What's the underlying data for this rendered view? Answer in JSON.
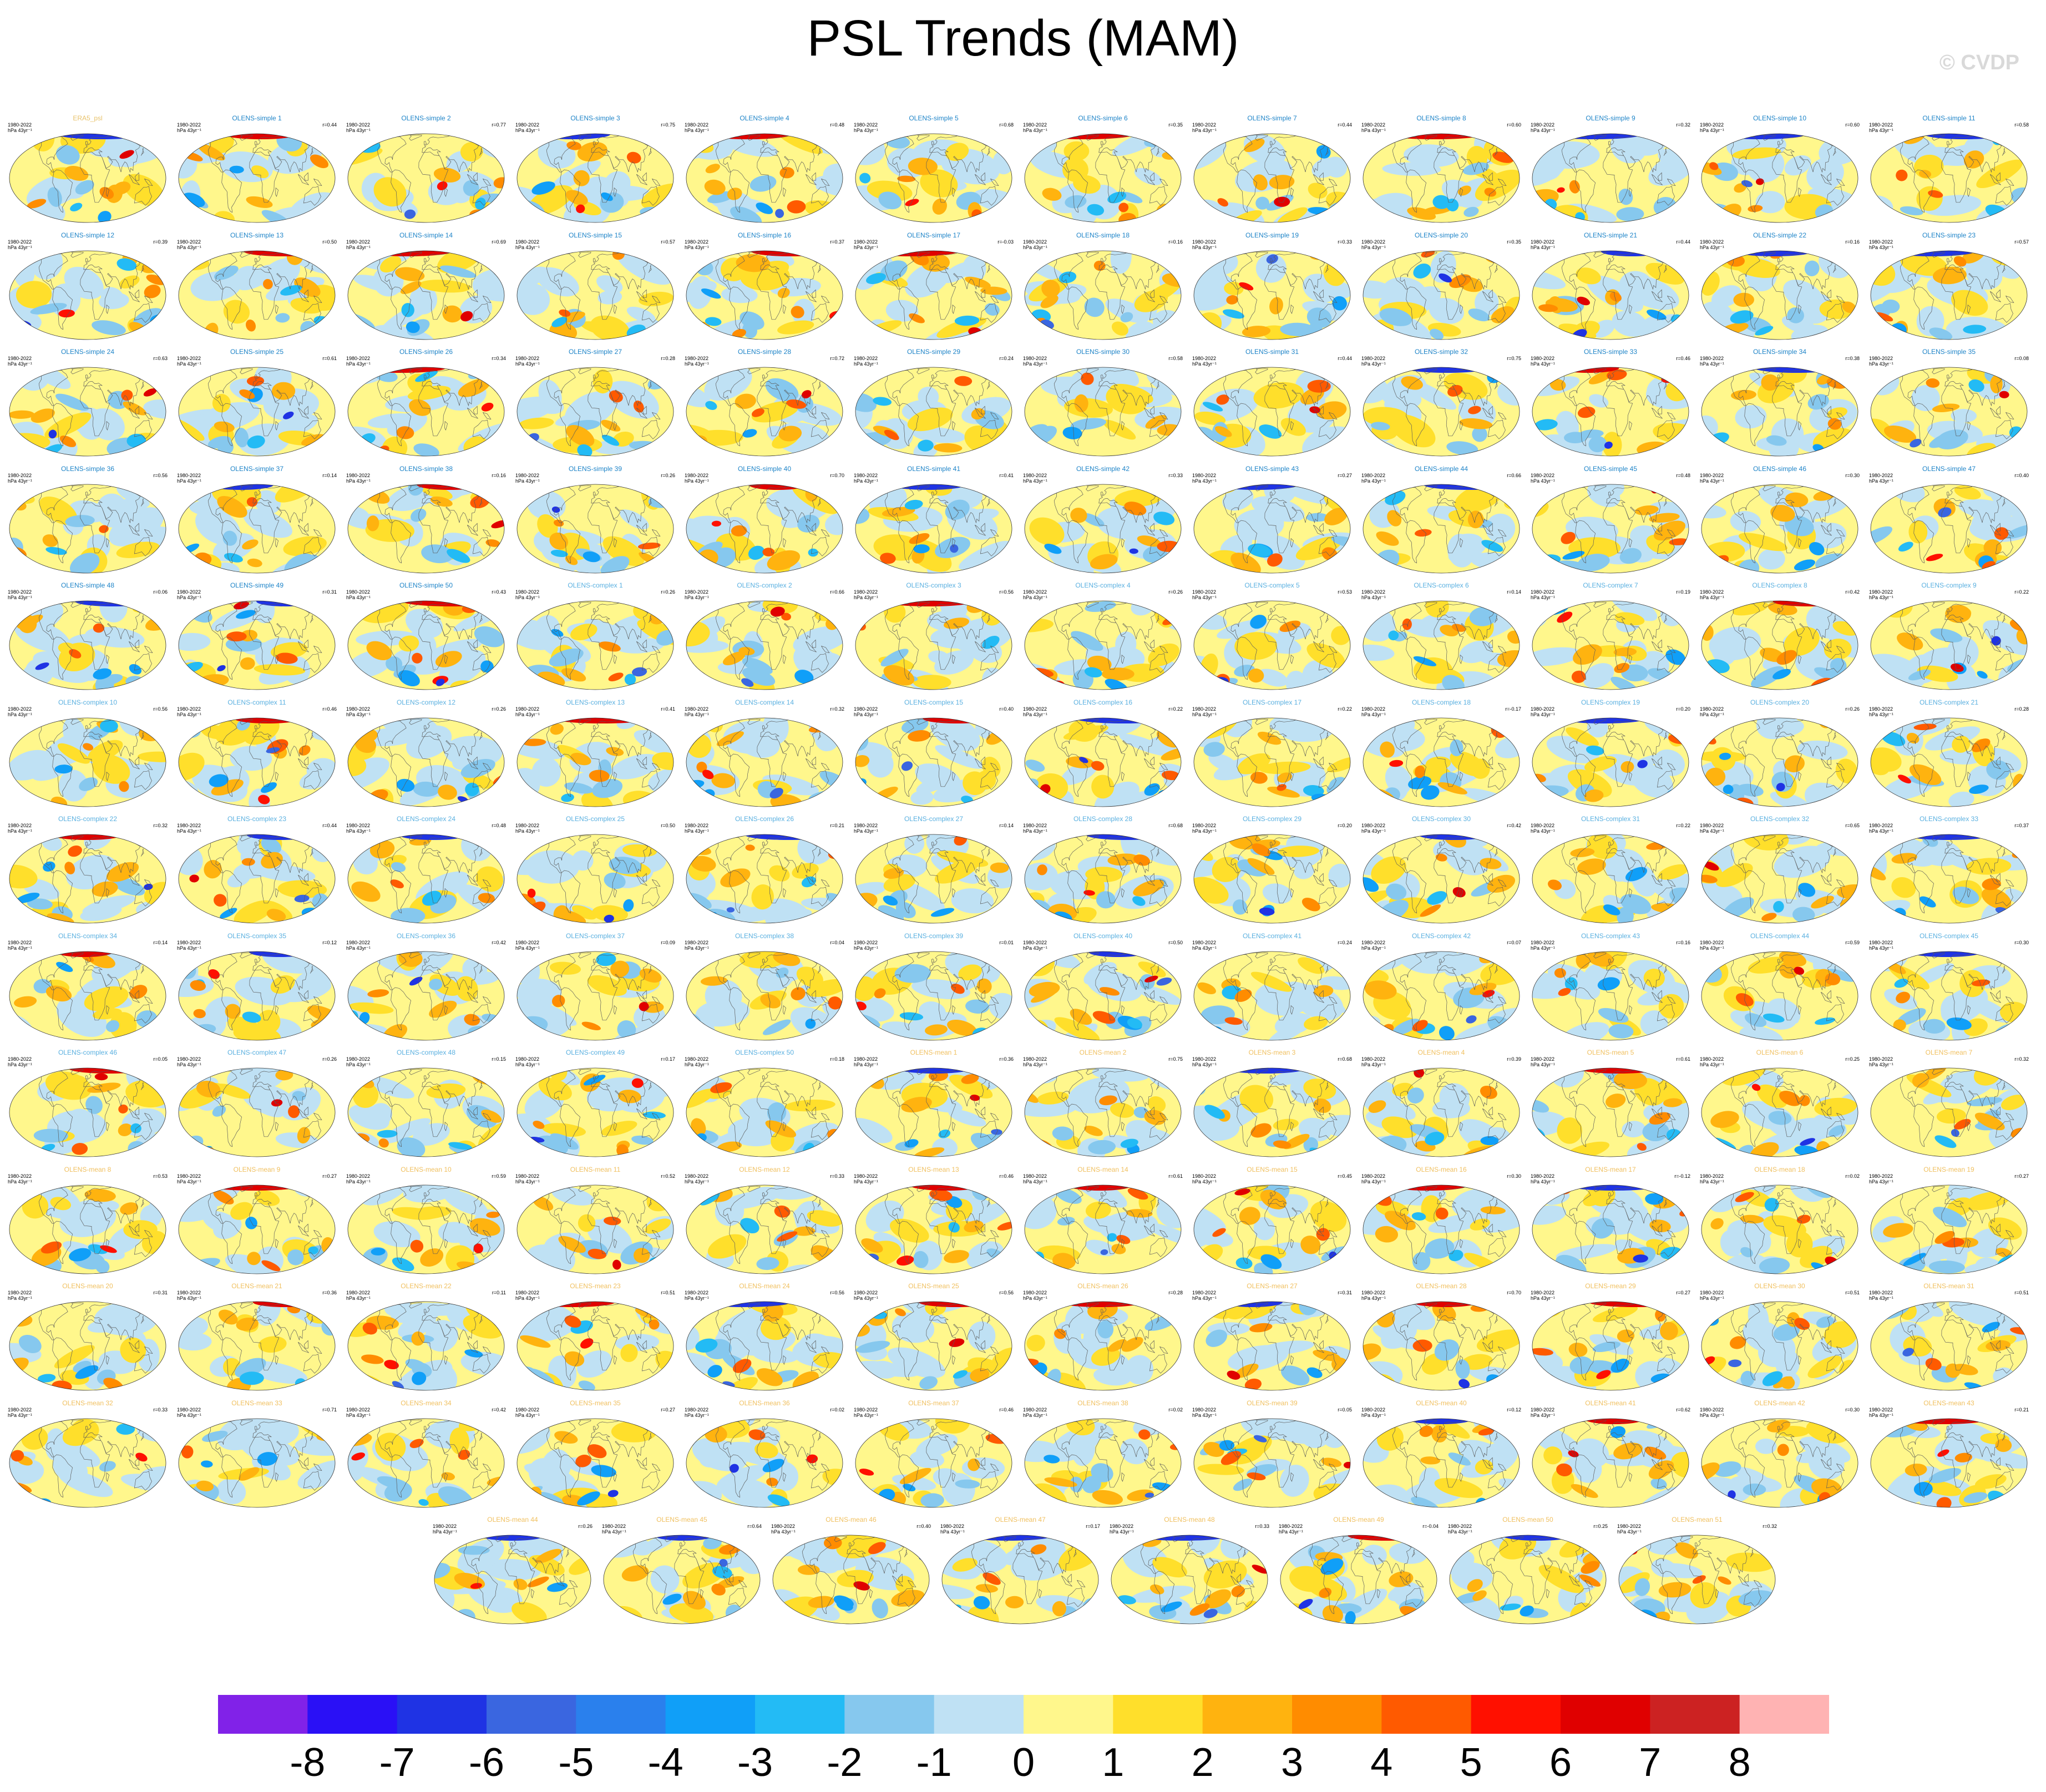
{
  "title": "PSL Trends (MAM)",
  "watermark": "© CVDP",
  "panel_period": "1980-2022",
  "panel_units": "hPa 43yr⁻¹",
  "chart_data": {
    "type": "heatmap",
    "title": "PSL Trends (MAM)",
    "projection": "robinson",
    "period": "1980-2022",
    "units": "hPa 43yr⁻¹",
    "colorbar": {
      "ticks": [
        "-8",
        "-7",
        "-6",
        "-5",
        "-4",
        "-3",
        "-2",
        "-1",
        "0",
        "1",
        "2",
        "3",
        "4",
        "5",
        "6",
        "7",
        "8"
      ],
      "colors": [
        "#8122e8",
        "#2a10f6",
        "#1f33e4",
        "#3a66e0",
        "#2a80ed",
        "#109ff8",
        "#23bbf5",
        "#86c8ee",
        "#bfe1f4",
        "#fff78c",
        "#ffdf2b",
        "#ffb30f",
        "#ff8c00",
        "#ff5a00",
        "#ff1000",
        "#e00000",
        "#cc2222",
        "#ffb3b3"
      ]
    },
    "panels": [
      {
        "title": "ERA5_psl",
        "r": "",
        "c": "#e8c26a"
      },
      {
        "title": "OLENS-simple 1",
        "r": "r=0.44",
        "c": "#1e84c8"
      },
      {
        "title": "OLENS-simple 2",
        "r": "r=0.77",
        "c": "#1e84c8"
      },
      {
        "title": "OLENS-simple 3",
        "r": "r=0.75",
        "c": "#1e84c8"
      },
      {
        "title": "OLENS-simple 4",
        "r": "r=0.48",
        "c": "#1e84c8"
      },
      {
        "title": "OLENS-simple 5",
        "r": "r=0.68",
        "c": "#1e84c8"
      },
      {
        "title": "OLENS-simple 6",
        "r": "r=0.35",
        "c": "#1e84c8"
      },
      {
        "title": "OLENS-simple 7",
        "r": "r=0.44",
        "c": "#1e84c8"
      },
      {
        "title": "OLENS-simple 8",
        "r": "r=0.60",
        "c": "#1e84c8"
      },
      {
        "title": "OLENS-simple 9",
        "r": "r=0.32",
        "c": "#1e84c8"
      },
      {
        "title": "OLENS-simple 10",
        "r": "r=0.60",
        "c": "#1e84c8"
      },
      {
        "title": "OLENS-simple 11",
        "r": "r=0.58",
        "c": "#1e84c8"
      },
      {
        "title": "OLENS-simple 12",
        "r": "r=0.39",
        "c": "#1e84c8"
      },
      {
        "title": "OLENS-simple 13",
        "r": "r=0.50",
        "c": "#1e84c8"
      },
      {
        "title": "OLENS-simple 14",
        "r": "r=0.69",
        "c": "#1e84c8"
      },
      {
        "title": "OLENS-simple 15",
        "r": "r=0.57",
        "c": "#1e84c8"
      },
      {
        "title": "OLENS-simple 16",
        "r": "r=0.37",
        "c": "#1e84c8"
      },
      {
        "title": "OLENS-simple 17",
        "r": "r=-0.03",
        "c": "#1e84c8"
      },
      {
        "title": "OLENS-simple 18",
        "r": "r=0.16",
        "c": "#1e84c8"
      },
      {
        "title": "OLENS-simple 19",
        "r": "r=0.33",
        "c": "#1e84c8"
      },
      {
        "title": "OLENS-simple 20",
        "r": "r=0.35",
        "c": "#1e84c8"
      },
      {
        "title": "OLENS-simple 21",
        "r": "r=0.44",
        "c": "#1e84c8"
      },
      {
        "title": "OLENS-simple 22",
        "r": "r=0.16",
        "c": "#1e84c8"
      },
      {
        "title": "OLENS-simple 23",
        "r": "r=0.57",
        "c": "#1e84c8"
      },
      {
        "title": "OLENS-simple 24",
        "r": "r=0.63",
        "c": "#1e84c8"
      },
      {
        "title": "OLENS-simple 25",
        "r": "r=0.61",
        "c": "#1e84c8"
      },
      {
        "title": "OLENS-simple 26",
        "r": "r=0.34",
        "c": "#1e84c8"
      },
      {
        "title": "OLENS-simple 27",
        "r": "r=0.28",
        "c": "#1e84c8"
      },
      {
        "title": "OLENS-simple 28",
        "r": "r=0.72",
        "c": "#1e84c8"
      },
      {
        "title": "OLENS-simple 29",
        "r": "r=0.24",
        "c": "#1e84c8"
      },
      {
        "title": "OLENS-simple 30",
        "r": "r=0.58",
        "c": "#1e84c8"
      },
      {
        "title": "OLENS-simple 31",
        "r": "r=0.44",
        "c": "#1e84c8"
      },
      {
        "title": "OLENS-simple 32",
        "r": "r=0.75",
        "c": "#1e84c8"
      },
      {
        "title": "OLENS-simple 33",
        "r": "r=0.46",
        "c": "#1e84c8"
      },
      {
        "title": "OLENS-simple 34",
        "r": "r=0.38",
        "c": "#1e84c8"
      },
      {
        "title": "OLENS-simple 35",
        "r": "r=0.08",
        "c": "#1e84c8"
      },
      {
        "title": "OLENS-simple 36",
        "r": "r=0.56",
        "c": "#1e84c8"
      },
      {
        "title": "OLENS-simple 37",
        "r": "r=0.14",
        "c": "#1e84c8"
      },
      {
        "title": "OLENS-simple 38",
        "r": "r=0.16",
        "c": "#1e84c8"
      },
      {
        "title": "OLENS-simple 39",
        "r": "r=0.26",
        "c": "#1e84c8"
      },
      {
        "title": "OLENS-simple 40",
        "r": "r=0.70",
        "c": "#1e84c8"
      },
      {
        "title": "OLENS-simple 41",
        "r": "r=0.41",
        "c": "#1e84c8"
      },
      {
        "title": "OLENS-simple 42",
        "r": "r=0.33",
        "c": "#1e84c8"
      },
      {
        "title": "OLENS-simple 43",
        "r": "r=0.27",
        "c": "#1e84c8"
      },
      {
        "title": "OLENS-simple 44",
        "r": "r=0.66",
        "c": "#1e84c8"
      },
      {
        "title": "OLENS-simple 45",
        "r": "r=0.48",
        "c": "#1e84c8"
      },
      {
        "title": "OLENS-simple 46",
        "r": "r=0.30",
        "c": "#1e84c8"
      },
      {
        "title": "OLENS-simple 47",
        "r": "r=0.40",
        "c": "#1e84c8"
      },
      {
        "title": "OLENS-simple 48",
        "r": "r=0.06",
        "c": "#1e84c8"
      },
      {
        "title": "OLENS-simple 49",
        "r": "r=0.31",
        "c": "#1e84c8"
      },
      {
        "title": "OLENS-simple 50",
        "r": "r=0.43",
        "c": "#1e84c8"
      },
      {
        "title": "OLENS-complex 1",
        "r": "r=0.26",
        "c": "#5ab0e0"
      },
      {
        "title": "OLENS-complex 2",
        "r": "r=0.66",
        "c": "#5ab0e0"
      },
      {
        "title": "OLENS-complex 3",
        "r": "r=0.56",
        "c": "#5ab0e0"
      },
      {
        "title": "OLENS-complex 4",
        "r": "r=0.26",
        "c": "#5ab0e0"
      },
      {
        "title": "OLENS-complex 5",
        "r": "r=0.53",
        "c": "#5ab0e0"
      },
      {
        "title": "OLENS-complex 6",
        "r": "r=0.14",
        "c": "#5ab0e0"
      },
      {
        "title": "OLENS-complex 7",
        "r": "r=0.19",
        "c": "#5ab0e0"
      },
      {
        "title": "OLENS-complex 8",
        "r": "r=0.42",
        "c": "#5ab0e0"
      },
      {
        "title": "OLENS-complex 9",
        "r": "r=0.22",
        "c": "#5ab0e0"
      },
      {
        "title": "OLENS-complex 10",
        "r": "r=0.56",
        "c": "#5ab0e0"
      },
      {
        "title": "OLENS-complex 11",
        "r": "r=0.46",
        "c": "#5ab0e0"
      },
      {
        "title": "OLENS-complex 12",
        "r": "r=0.26",
        "c": "#5ab0e0"
      },
      {
        "title": "OLENS-complex 13",
        "r": "r=0.41",
        "c": "#5ab0e0"
      },
      {
        "title": "OLENS-complex 14",
        "r": "r=0.32",
        "c": "#5ab0e0"
      },
      {
        "title": "OLENS-complex 15",
        "r": "r=0.40",
        "c": "#5ab0e0"
      },
      {
        "title": "OLENS-complex 16",
        "r": "r=0.22",
        "c": "#5ab0e0"
      },
      {
        "title": "OLENS-complex 17",
        "r": "r=0.22",
        "c": "#5ab0e0"
      },
      {
        "title": "OLENS-complex 18",
        "r": "r=-0.17",
        "c": "#5ab0e0"
      },
      {
        "title": "OLENS-complex 19",
        "r": "r=0.20",
        "c": "#5ab0e0"
      },
      {
        "title": "OLENS-complex 20",
        "r": "r=0.26",
        "c": "#5ab0e0"
      },
      {
        "title": "OLENS-complex 21",
        "r": "r=0.28",
        "c": "#5ab0e0"
      },
      {
        "title": "OLENS-complex 22",
        "r": "r=0.32",
        "c": "#5ab0e0"
      },
      {
        "title": "OLENS-complex 23",
        "r": "r=0.44",
        "c": "#5ab0e0"
      },
      {
        "title": "OLENS-complex 24",
        "r": "r=0.48",
        "c": "#5ab0e0"
      },
      {
        "title": "OLENS-complex 25",
        "r": "r=0.50",
        "c": "#5ab0e0"
      },
      {
        "title": "OLENS-complex 26",
        "r": "r=0.21",
        "c": "#5ab0e0"
      },
      {
        "title": "OLENS-complex 27",
        "r": "r=0.14",
        "c": "#5ab0e0"
      },
      {
        "title": "OLENS-complex 28",
        "r": "r=0.68",
        "c": "#5ab0e0"
      },
      {
        "title": "OLENS-complex 29",
        "r": "r=0.20",
        "c": "#5ab0e0"
      },
      {
        "title": "OLENS-complex 30",
        "r": "r=0.42",
        "c": "#5ab0e0"
      },
      {
        "title": "OLENS-complex 31",
        "r": "r=0.22",
        "c": "#5ab0e0"
      },
      {
        "title": "OLENS-complex 32",
        "r": "r=0.65",
        "c": "#5ab0e0"
      },
      {
        "title": "OLENS-complex 33",
        "r": "r=0.37",
        "c": "#5ab0e0"
      },
      {
        "title": "OLENS-complex 34",
        "r": "r=0.14",
        "c": "#5ab0e0"
      },
      {
        "title": "OLENS-complex 35",
        "r": "r=0.12",
        "c": "#5ab0e0"
      },
      {
        "title": "OLENS-complex 36",
        "r": "r=0.42",
        "c": "#5ab0e0"
      },
      {
        "title": "OLENS-complex 37",
        "r": "r=0.09",
        "c": "#5ab0e0"
      },
      {
        "title": "OLENS-complex 38",
        "r": "r=0.04",
        "c": "#5ab0e0"
      },
      {
        "title": "OLENS-complex 39",
        "r": "r=0.01",
        "c": "#5ab0e0"
      },
      {
        "title": "OLENS-complex 40",
        "r": "r=0.50",
        "c": "#5ab0e0"
      },
      {
        "title": "OLENS-complex 41",
        "r": "r=0.24",
        "c": "#5ab0e0"
      },
      {
        "title": "OLENS-complex 42",
        "r": "r=0.07",
        "c": "#5ab0e0"
      },
      {
        "title": "OLENS-complex 43",
        "r": "r=0.16",
        "c": "#5ab0e0"
      },
      {
        "title": "OLENS-complex 44",
        "r": "r=0.59",
        "c": "#5ab0e0"
      },
      {
        "title": "OLENS-complex 45",
        "r": "r=0.30",
        "c": "#5ab0e0"
      },
      {
        "title": "OLENS-complex 46",
        "r": "r=0.05",
        "c": "#5ab0e0"
      },
      {
        "title": "OLENS-complex 47",
        "r": "r=0.26",
        "c": "#5ab0e0"
      },
      {
        "title": "OLENS-complex 48",
        "r": "r=0.15",
        "c": "#5ab0e0"
      },
      {
        "title": "OLENS-complex 49",
        "r": "r=0.17",
        "c": "#5ab0e0"
      },
      {
        "title": "OLENS-complex 50",
        "r": "r=0.18",
        "c": "#5ab0e0"
      },
      {
        "title": "OLENS-mean 1",
        "r": "r=0.36",
        "c": "#f0c060"
      },
      {
        "title": "OLENS-mean 2",
        "r": "r=0.75",
        "c": "#f0c060"
      },
      {
        "title": "OLENS-mean 3",
        "r": "r=0.68",
        "c": "#f0c060"
      },
      {
        "title": "OLENS-mean 4",
        "r": "r=0.39",
        "c": "#f0c060"
      },
      {
        "title": "OLENS-mean 5",
        "r": "r=0.61",
        "c": "#f0c060"
      },
      {
        "title": "OLENS-mean 6",
        "r": "r=0.25",
        "c": "#f0c060"
      },
      {
        "title": "OLENS-mean 7",
        "r": "r=0.32",
        "c": "#f0c060"
      },
      {
        "title": "OLENS-mean 8",
        "r": "r=0.53",
        "c": "#f0c060"
      },
      {
        "title": "OLENS-mean 9",
        "r": "r=0.27",
        "c": "#f0c060"
      },
      {
        "title": "OLENS-mean 10",
        "r": "r=0.59",
        "c": "#f0c060"
      },
      {
        "title": "OLENS-mean 11",
        "r": "r=0.52",
        "c": "#f0c060"
      },
      {
        "title": "OLENS-mean 12",
        "r": "r=0.33",
        "c": "#f0c060"
      },
      {
        "title": "OLENS-mean 13",
        "r": "r=0.46",
        "c": "#f0c060"
      },
      {
        "title": "OLENS-mean 14",
        "r": "r=0.61",
        "c": "#f0c060"
      },
      {
        "title": "OLENS-mean 15",
        "r": "r=0.45",
        "c": "#f0c060"
      },
      {
        "title": "OLENS-mean 16",
        "r": "r=0.30",
        "c": "#f0c060"
      },
      {
        "title": "OLENS-mean 17",
        "r": "r=-0.12",
        "c": "#f0c060"
      },
      {
        "title": "OLENS-mean 18",
        "r": "r=0.02",
        "c": "#f0c060"
      },
      {
        "title": "OLENS-mean 19",
        "r": "r=0.27",
        "c": "#f0c060"
      },
      {
        "title": "OLENS-mean 20",
        "r": "r=0.31",
        "c": "#f0c060"
      },
      {
        "title": "OLENS-mean 21",
        "r": "r=0.36",
        "c": "#f0c060"
      },
      {
        "title": "OLENS-mean 22",
        "r": "r=0.11",
        "c": "#f0c060"
      },
      {
        "title": "OLENS-mean 23",
        "r": "r=0.51",
        "c": "#f0c060"
      },
      {
        "title": "OLENS-mean 24",
        "r": "r=0.56",
        "c": "#f0c060"
      },
      {
        "title": "OLENS-mean 25",
        "r": "r=0.56",
        "c": "#f0c060"
      },
      {
        "title": "OLENS-mean 26",
        "r": "r=0.28",
        "c": "#f0c060"
      },
      {
        "title": "OLENS-mean 27",
        "r": "r=0.31",
        "c": "#f0c060"
      },
      {
        "title": "OLENS-mean 28",
        "r": "r=0.70",
        "c": "#f0c060"
      },
      {
        "title": "OLENS-mean 29",
        "r": "r=0.27",
        "c": "#f0c060"
      },
      {
        "title": "OLENS-mean 30",
        "r": "r=0.51",
        "c": "#f0c060"
      },
      {
        "title": "OLENS-mean 31",
        "r": "r=0.51",
        "c": "#f0c060"
      },
      {
        "title": "OLENS-mean 32",
        "r": "r=0.33",
        "c": "#f0c060"
      },
      {
        "title": "OLENS-mean 33",
        "r": "r=0.71",
        "c": "#f0c060"
      },
      {
        "title": "OLENS-mean 34",
        "r": "r=0.42",
        "c": "#f0c060"
      },
      {
        "title": "OLENS-mean 35",
        "r": "r=0.27",
        "c": "#f0c060"
      },
      {
        "title": "OLENS-mean 36",
        "r": "r=0.02",
        "c": "#f0c060"
      },
      {
        "title": "OLENS-mean 37",
        "r": "r=0.46",
        "c": "#f0c060"
      },
      {
        "title": "OLENS-mean 38",
        "r": "r=0.02",
        "c": "#f0c060"
      },
      {
        "title": "OLENS-mean 39",
        "r": "r=0.05",
        "c": "#f0c060"
      },
      {
        "title": "OLENS-mean 40",
        "r": "r=0.12",
        "c": "#f0c060"
      },
      {
        "title": "OLENS-mean 41",
        "r": "r=0.62",
        "c": "#f0c060"
      },
      {
        "title": "OLENS-mean 42",
        "r": "r=0.30",
        "c": "#f0c060"
      },
      {
        "title": "OLENS-mean 43",
        "r": "r=0.21",
        "c": "#f0c060"
      },
      {
        "title": "OLENS-mean 44",
        "r": "r=0.26",
        "c": "#f0c060"
      },
      {
        "title": "OLENS-mean 45",
        "r": "r=0.64",
        "c": "#f0c060"
      },
      {
        "title": "OLENS-mean 46",
        "r": "r=0.40",
        "c": "#f0c060"
      },
      {
        "title": "OLENS-mean 47",
        "r": "r=0.17",
        "c": "#f0c060"
      },
      {
        "title": "OLENS-mean 48",
        "r": "r=0.33",
        "c": "#f0c060"
      },
      {
        "title": "OLENS-mean 49",
        "r": "r=-0.04",
        "c": "#f0c060"
      },
      {
        "title": "OLENS-mean 50",
        "r": "r=0.25",
        "c": "#f0c060"
      },
      {
        "title": "OLENS-mean 51",
        "r": "r=0.32",
        "c": "#f0c060"
      }
    ]
  }
}
